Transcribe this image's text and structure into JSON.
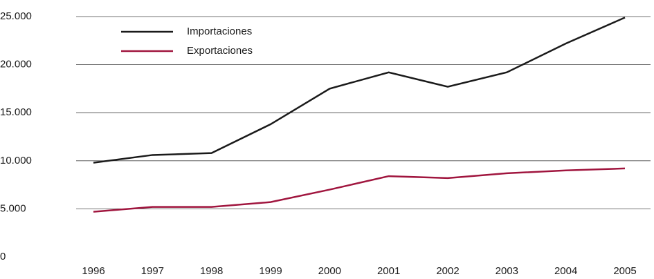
{
  "chart_data": {
    "type": "line",
    "categories": [
      "1996",
      "1997",
      "1998",
      "1999",
      "2000",
      "2001",
      "2002",
      "2003",
      "2004",
      "2005"
    ],
    "series": [
      {
        "name": "Importaciones",
        "color": "#1a1a1a",
        "values": [
          9800,
          10600,
          10800,
          13800,
          17500,
          19200,
          17700,
          19200,
          22200,
          24900
        ]
      },
      {
        "name": "Exportaciones",
        "color": "#a0153e",
        "values": [
          4700,
          5200,
          5200,
          5700,
          7000,
          8400,
          8200,
          8700,
          9000,
          9200
        ]
      }
    ],
    "ylim": [
      0,
      25000
    ],
    "yticks": [
      0,
      {
        "value": 5000,
        "label": "5.000"
      },
      {
        "value": 10000,
        "label": "10.000"
      },
      {
        "value": 15000,
        "label": "15.000"
      },
      {
        "value": 20000,
        "label": "20.000"
      },
      {
        "value": 25000,
        "label": "25.000"
      }
    ],
    "grid": true,
    "legend": "upper left"
  }
}
